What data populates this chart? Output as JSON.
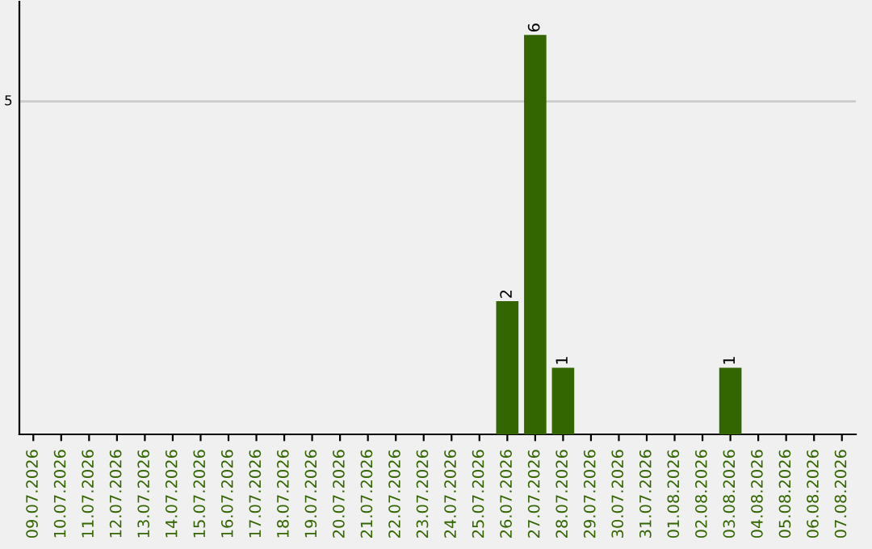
{
  "chart_data": {
    "type": "bar",
    "categories": [
      "09.07.2026",
      "10.07.2026",
      "11.07.2026",
      "12.07.2026",
      "13.07.2026",
      "14.07.2026",
      "15.07.2026",
      "16.07.2026",
      "17.07.2026",
      "18.07.2026",
      "19.07.2026",
      "20.07.2026",
      "21.07.2026",
      "22.07.2026",
      "23.07.2026",
      "24.07.2026",
      "25.07.2026",
      "26.07.2026",
      "27.07.2026",
      "28.07.2026",
      "29.07.2026",
      "30.07.2026",
      "31.07.2026",
      "01.08.2026",
      "02.08.2026",
      "03.08.2026",
      "04.08.2026",
      "05.08.2026",
      "06.08.2026",
      "07.08.2026"
    ],
    "values": [
      null,
      null,
      null,
      null,
      null,
      null,
      null,
      null,
      null,
      null,
      null,
      null,
      null,
      null,
      null,
      null,
      null,
      2,
      6,
      1,
      null,
      null,
      null,
      null,
      null,
      1,
      null,
      null,
      null,
      null
    ],
    "data_labels": true,
    "color": "#336600",
    "ylim": [
      0,
      6.5
    ],
    "ref_lines": [
      {
        "axis": "y",
        "value": 5,
        "label": "5",
        "color": "#cccccc"
      }
    ]
  }
}
